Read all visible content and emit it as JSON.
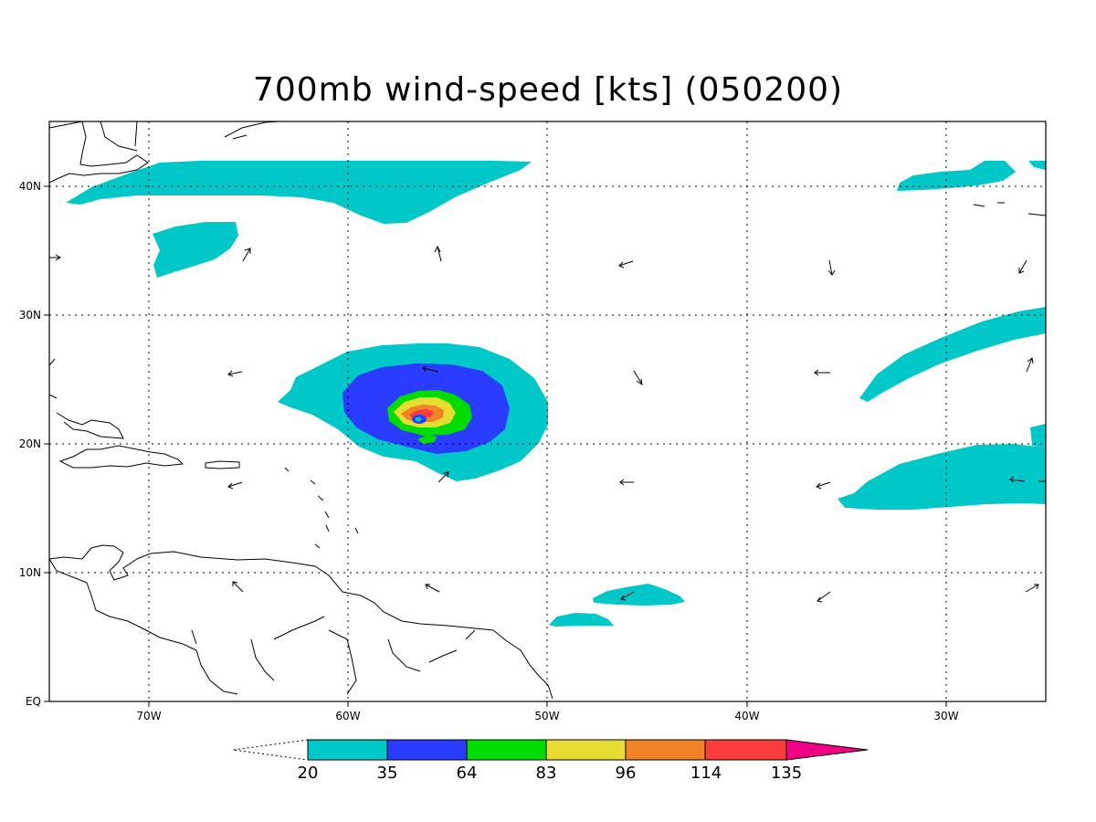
{
  "title": "700mb wind-speed [kts] (050200)",
  "map": {
    "lon_range": [
      -75,
      -25
    ],
    "lat_range": [
      0,
      45
    ],
    "x_ticks": [
      {
        "lon": -70,
        "label": "70W"
      },
      {
        "lon": -60,
        "label": "60W"
      },
      {
        "lon": -50,
        "label": "50W"
      },
      {
        "lon": -40,
        "label": "40W"
      },
      {
        "lon": -30,
        "label": "30W"
      }
    ],
    "y_ticks": [
      {
        "lat": 0,
        "label": "EQ"
      },
      {
        "lat": 10,
        "label": "10N"
      },
      {
        "lat": 20,
        "label": "20N"
      },
      {
        "lat": 30,
        "label": "30N"
      },
      {
        "lat": 40,
        "label": "40N"
      }
    ],
    "grid": "dotted"
  },
  "colorbar": {
    "levels": [
      {
        "label": "20",
        "color": "#00c8c8"
      },
      {
        "label": "35",
        "color": "#2a3cff"
      },
      {
        "label": "64",
        "color": "#00dc00"
      },
      {
        "label": "83",
        "color": "#e6dc32"
      },
      {
        "label": "96",
        "color": "#f08228"
      },
      {
        "label": "114",
        "color": "#fa3c3c"
      },
      {
        "label": "135",
        "color": "#f00082"
      }
    ]
  }
}
